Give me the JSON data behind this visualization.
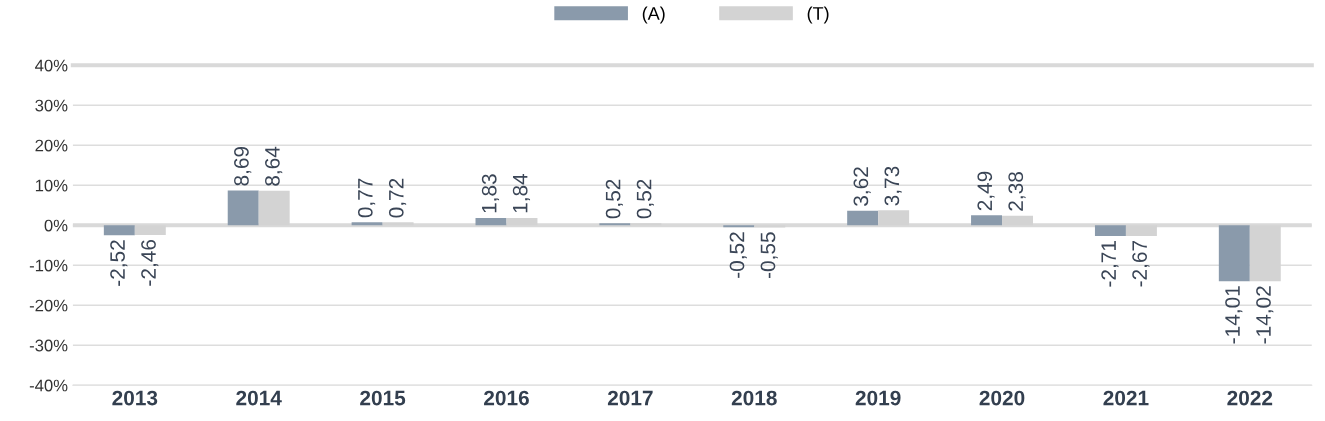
{
  "chart_data": {
    "type": "bar",
    "categories": [
      "2013",
      "2014",
      "2015",
      "2016",
      "2017",
      "2018",
      "2019",
      "2020",
      "2021",
      "2022"
    ],
    "series": [
      {
        "name": "(A)",
        "color": "#8a9aab",
        "values": [
          -2.52,
          8.69,
          0.77,
          1.83,
          0.52,
          -0.52,
          3.62,
          2.49,
          -2.71,
          -14.01
        ],
        "value_labels": [
          "-2,52",
          "8,69",
          "0,77",
          "1,83",
          "0,52",
          "-0,52",
          "3,62",
          "2,49",
          "-2,71",
          "-14,01"
        ]
      },
      {
        "name": "(T)",
        "color": "#d3d3d3",
        "values": [
          -2.46,
          8.64,
          0.72,
          1.84,
          0.52,
          -0.55,
          3.73,
          2.38,
          -2.67,
          -14.02
        ],
        "value_labels": [
          "-2,46",
          "8,64",
          "0,72",
          "1,84",
          "0,52",
          "-0,55",
          "3,73",
          "2,38",
          "-2,67",
          "-14,02"
        ]
      }
    ],
    "ylim": [
      -40,
      40
    ],
    "yticks": [
      {
        "value": -40,
        "label": "-40%"
      },
      {
        "value": -30,
        "label": "-30%"
      },
      {
        "value": -20,
        "label": "-20%"
      },
      {
        "value": -10,
        "label": "-10%"
      },
      {
        "value": 0,
        "label": "0%"
      },
      {
        "value": 10,
        "label": "10%"
      },
      {
        "value": 20,
        "label": "20%"
      },
      {
        "value": 30,
        "label": "30%"
      },
      {
        "value": 40,
        "label": "40%"
      }
    ],
    "grid": "y",
    "legend": "top"
  }
}
